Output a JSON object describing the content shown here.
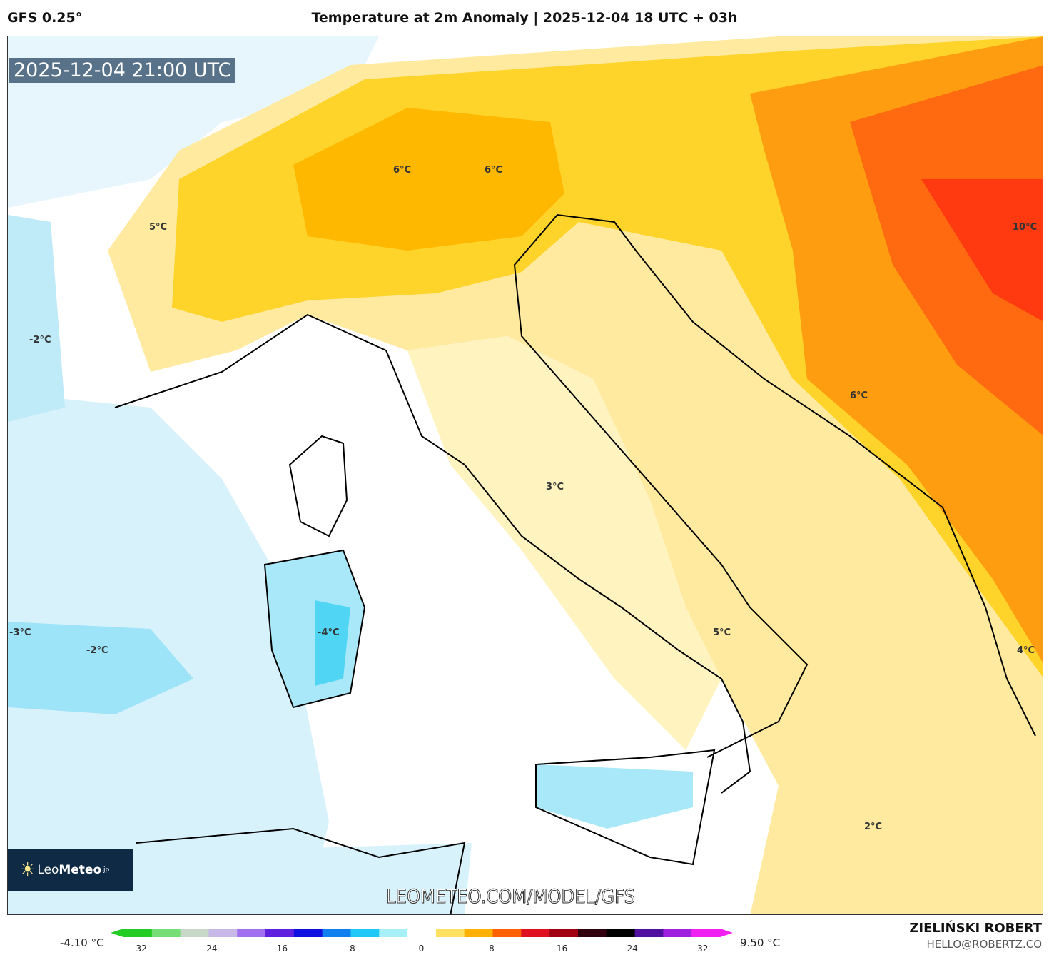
{
  "header": {
    "model": "GFS 0.25°",
    "title": "Temperature at 2m Anomaly | 2025-12-04 18 UTC + 03h"
  },
  "map": {
    "valid_time": "2025-12-04 21:00 UTC",
    "labels": [
      "6°C",
      "6°C",
      "5°C",
      "10°C",
      "-2°C",
      "6°C",
      "3°C",
      "-3°C",
      "-2°C",
      "-4°C",
      "5°C",
      "4°C",
      "2°C"
    ],
    "watermark": "LEOMETEO.COM/MODEL/GFS",
    "logo": {
      "light": "Leo",
      "bold": "Meteo",
      "suffix": ".jp"
    }
  },
  "colorbar": {
    "min_label": "-4.10 °C",
    "max_label": "9.50 °C",
    "ticks": [
      "-32",
      "-24",
      "-16",
      "-8",
      "0",
      "8",
      "16",
      "24",
      "32"
    ],
    "colors": [
      "#22cc22",
      "#77dd77",
      "#c8d8c8",
      "#c8b8e8",
      "#a070f0",
      "#6020e0",
      "#1010e0",
      "#1080f0",
      "#20c8f8",
      "#a8f0f8",
      "#ffffff",
      "#ffe060",
      "#ffb000",
      "#ff6000",
      "#e01020",
      "#a00010",
      "#300010",
      "#000000",
      "#5010a0",
      "#a020e0",
      "#f020f0"
    ]
  },
  "credits": {
    "author": "ZIELIŃSKI ROBERT",
    "email": "HELLO@ROBERTZ.CO"
  }
}
